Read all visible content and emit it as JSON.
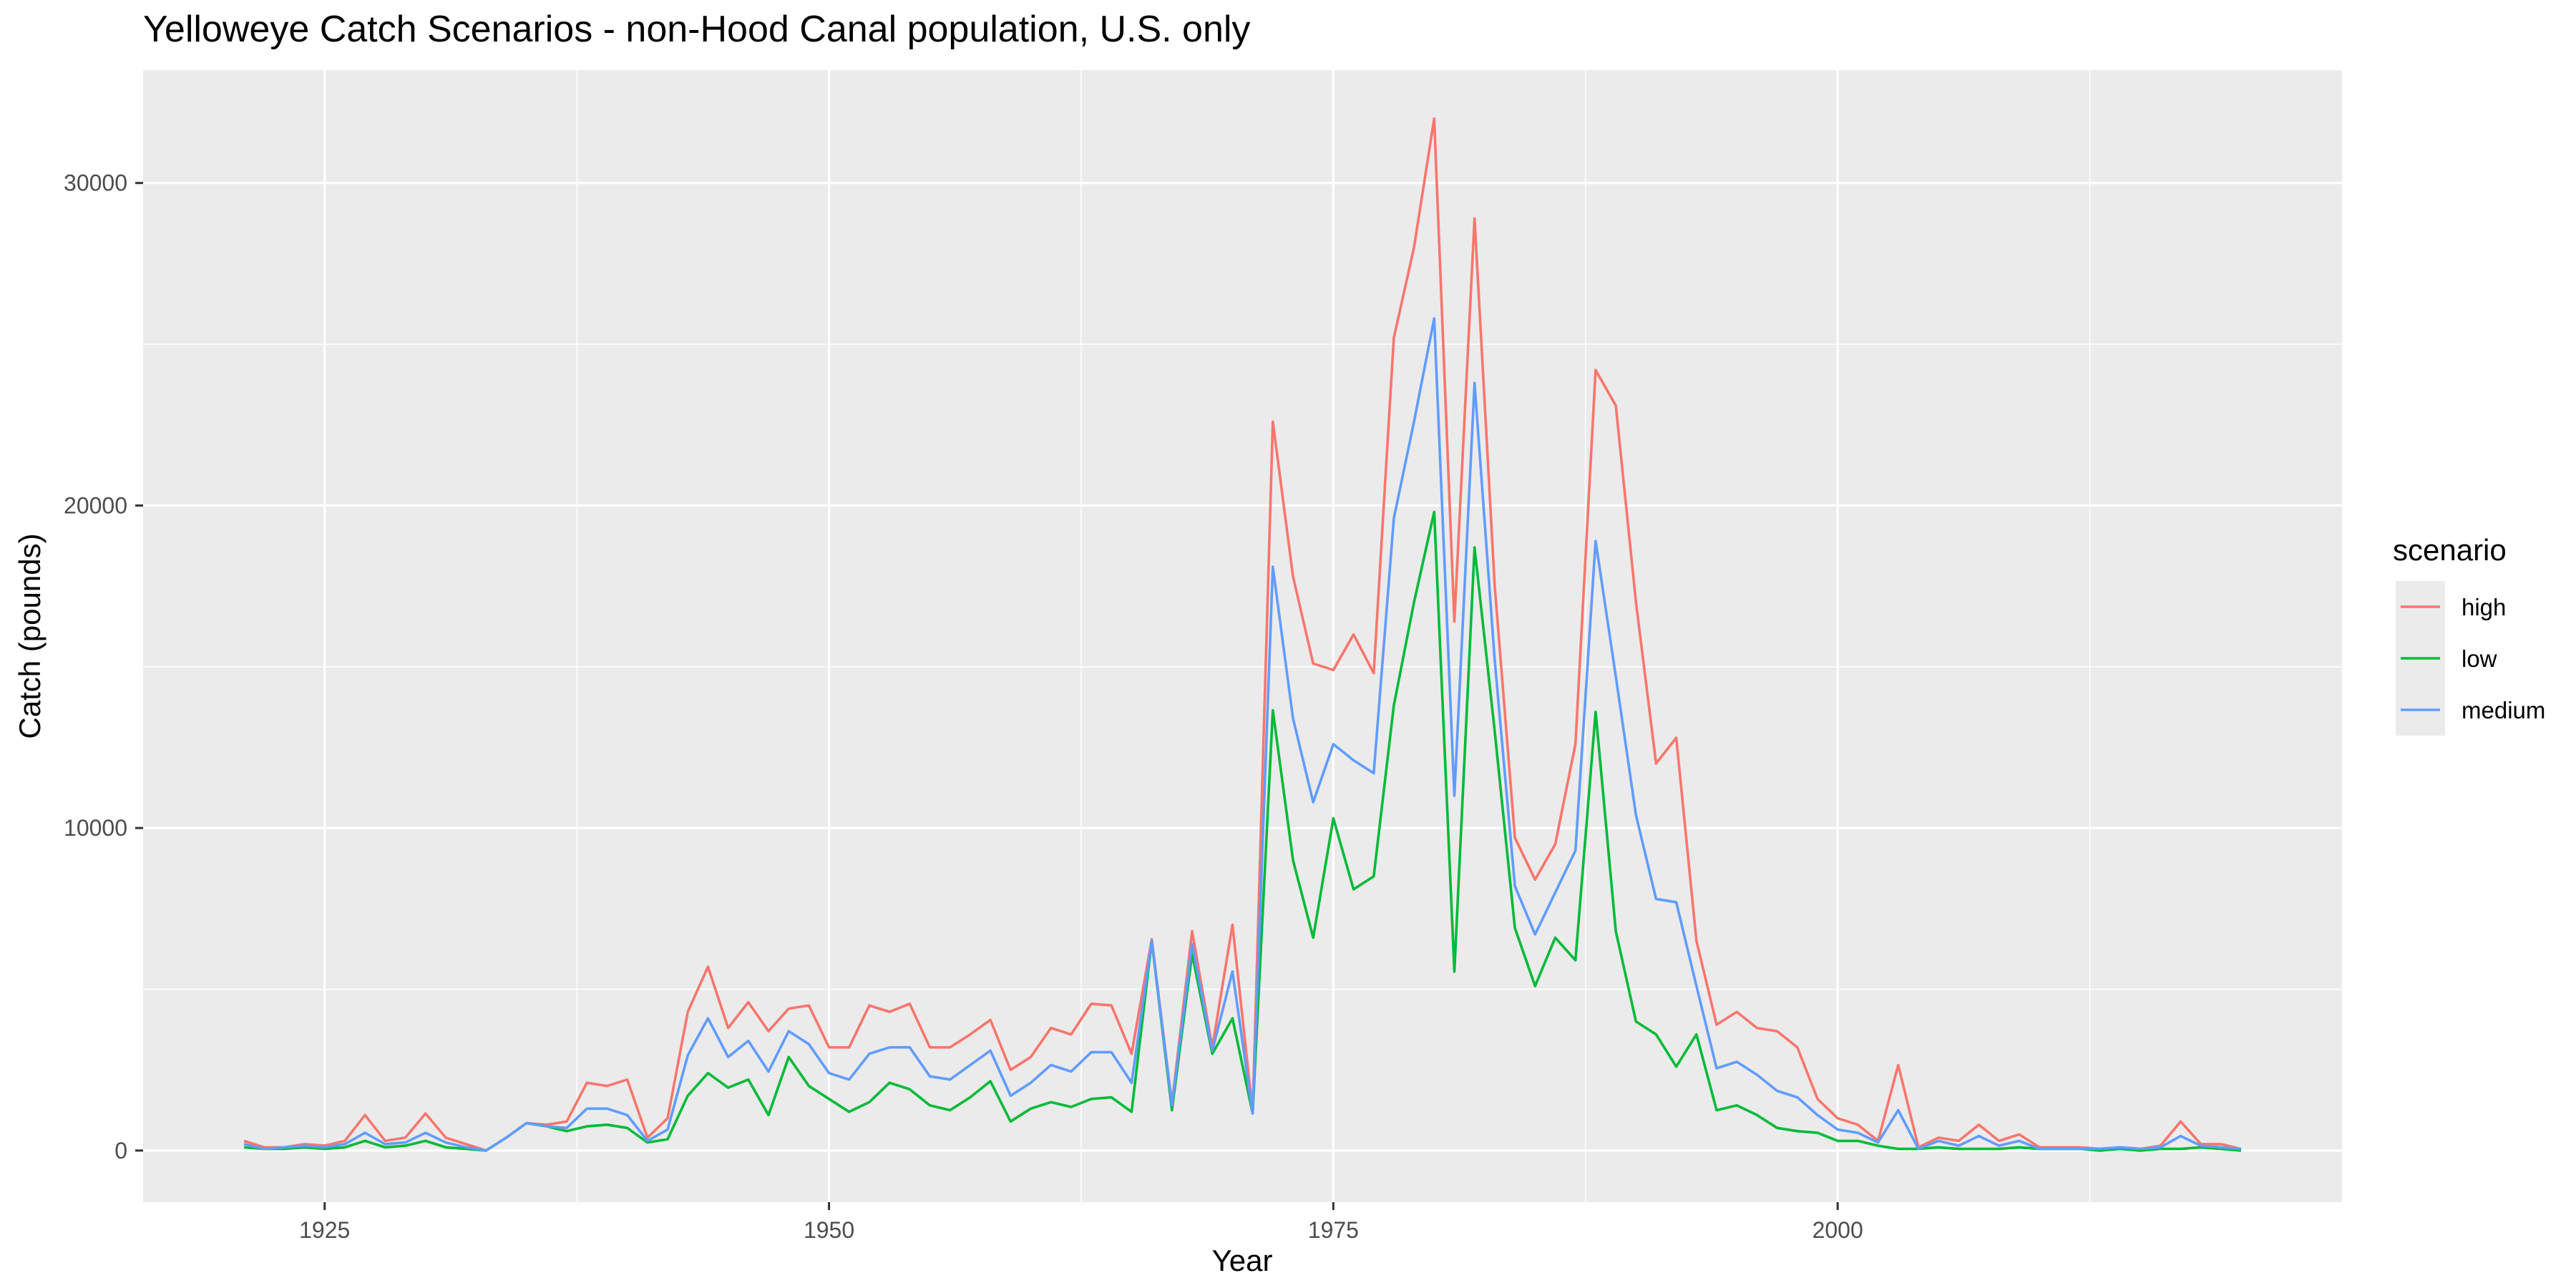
{
  "chart_data": {
    "type": "line",
    "title": "Yelloweye Catch Scenarios - non-Hood Canal population, U.S. only",
    "xlabel": "Year",
    "ylabel": "Catch (pounds)",
    "xlim": [
      1916,
      2025
    ],
    "ylim": [
      -1600,
      33500
    ],
    "x_ticks": [
      1925,
      1950,
      1975,
      2000
    ],
    "x_tick_labels": [
      "1925",
      "1950",
      "1975",
      "2000"
    ],
    "y_ticks": [
      0,
      10000,
      20000,
      30000
    ],
    "y_tick_labels": [
      "0",
      "10000",
      "20000",
      "30000"
    ],
    "grid": true,
    "legend": {
      "title": "scenario",
      "position": "right"
    },
    "x": [
      1921,
      1922,
      1923,
      1924,
      1925,
      1926,
      1927,
      1928,
      1929,
      1930,
      1931,
      1932,
      1933,
      1934,
      1935,
      1936,
      1937,
      1938,
      1939,
      1940,
      1941,
      1942,
      1943,
      1944,
      1945,
      1946,
      1947,
      1948,
      1949,
      1950,
      1951,
      1952,
      1953,
      1954,
      1955,
      1956,
      1957,
      1958,
      1959,
      1960,
      1961,
      1962,
      1963,
      1964,
      1965,
      1966,
      1967,
      1968,
      1969,
      1970,
      1971,
      1972,
      1973,
      1974,
      1975,
      1976,
      1977,
      1978,
      1979,
      1980,
      1981,
      1982,
      1983,
      1984,
      1985,
      1986,
      1987,
      1988,
      1989,
      1990,
      1991,
      1992,
      1993,
      1994,
      1995,
      1996,
      1997,
      1998,
      1999,
      2000,
      2001,
      2002,
      2003,
      2004,
      2005,
      2006,
      2007,
      2008,
      2009,
      2010,
      2011,
      2012,
      2013,
      2014,
      2015,
      2016,
      2017,
      2018,
      2019,
      2020
    ],
    "series": [
      {
        "name": "high",
        "color": "#F8766D",
        "values": [
          300,
          100,
          100,
          200,
          150,
          300,
          1100,
          300,
          400,
          1150,
          400,
          200,
          0,
          400,
          850,
          800,
          900,
          2100,
          2000,
          2200,
          400,
          1000,
          4300,
          5700,
          3800,
          4600,
          3700,
          4400,
          4500,
          3200,
          3200,
          4500,
          4300,
          4550,
          3200,
          3200,
          3600,
          4050,
          2500,
          2900,
          3800,
          3600,
          4550,
          4500,
          3000,
          6550,
          1450,
          6800,
          3200,
          7000,
          1200,
          22600,
          17800,
          15100,
          14900,
          16000,
          14800,
          25200,
          28000,
          32000,
          16400,
          28900,
          17500,
          9700,
          8400,
          9500,
          12600,
          24200,
          23100,
          17000,
          12000,
          12800,
          6500,
          3900,
          4300,
          3800,
          3700,
          3200,
          1600,
          1000,
          800,
          300,
          2650,
          100,
          400,
          300,
          800,
          300,
          500,
          100,
          100,
          100,
          50,
          100,
          50,
          150,
          900,
          200,
          200,
          50
        ]
      },
      {
        "name": "low",
        "color": "#00BA38",
        "values": [
          100,
          50,
          50,
          100,
          50,
          100,
          300,
          100,
          150,
          300,
          100,
          50,
          0,
          400,
          850,
          750,
          600,
          750,
          800,
          700,
          250,
          350,
          1700,
          2400,
          1950,
          2200,
          1100,
          2900,
          2000,
          1600,
          1200,
          1500,
          2100,
          1900,
          1400,
          1250,
          1650,
          2150,
          900,
          1300,
          1500,
          1350,
          1600,
          1650,
          1200,
          6500,
          1250,
          6100,
          3000,
          4100,
          1150,
          13650,
          9000,
          6600,
          10300,
          8100,
          8500,
          13800,
          17000,
          19800,
          5550,
          18700,
          13000,
          6900,
          5100,
          6600,
          5900,
          13600,
          6800,
          4000,
          3600,
          2600,
          3600,
          1250,
          1400,
          1100,
          700,
          600,
          550,
          300,
          300,
          150,
          50,
          50,
          100,
          50,
          50,
          50,
          100,
          50,
          50,
          50,
          0,
          50,
          0,
          50,
          50,
          100,
          50,
          0
        ]
      },
      {
        "name": "medium",
        "color": "#619CFF",
        "values": [
          200,
          50,
          100,
          150,
          100,
          200,
          550,
          200,
          250,
          550,
          250,
          100,
          0,
          400,
          850,
          750,
          700,
          1300,
          1300,
          1100,
          300,
          650,
          2950,
          4100,
          2900,
          3400,
          2450,
          3700,
          3300,
          2400,
          2200,
          3000,
          3200,
          3200,
          2300,
          2200,
          2650,
          3100,
          1700,
          2100,
          2650,
          2450,
          3050,
          3050,
          2100,
          6500,
          1400,
          6400,
          3100,
          5550,
          1150,
          18100,
          13400,
          10800,
          12600,
          12100,
          11700,
          19600,
          22600,
          25800,
          11000,
          23800,
          15200,
          8200,
          6700,
          8000,
          9300,
          18900,
          14700,
          10400,
          7800,
          7700,
          5100,
          2550,
          2750,
          2350,
          1850,
          1650,
          1100,
          650,
          550,
          250,
          1250,
          50,
          300,
          150,
          450,
          150,
          300,
          50,
          50,
          50,
          50,
          100,
          50,
          100,
          450,
          150,
          100,
          50
        ]
      }
    ]
  }
}
